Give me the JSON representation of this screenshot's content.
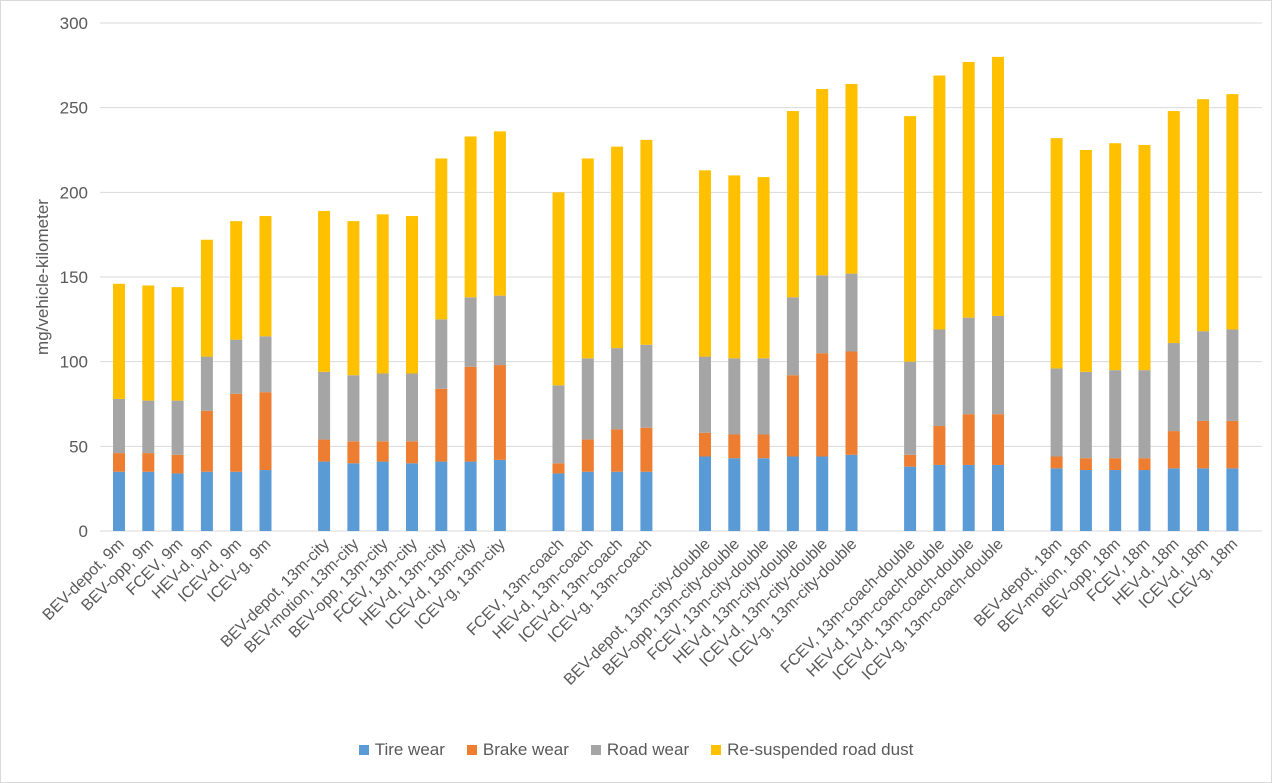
{
  "chart_data": {
    "type": "bar",
    "stacked": true,
    "title": "",
    "xlabel": "",
    "ylabel": "mg/vehicle-kilometer",
    "ylim": [
      0,
      300
    ],
    "yticks": [
      0,
      50,
      100,
      150,
      200,
      250,
      300
    ],
    "grid": true,
    "legend_position": "bottom",
    "colors": [
      "#5b9bd5",
      "#ed7d31",
      "#a5a5a5",
      "#ffc000"
    ],
    "groups": [
      {
        "categories": [
          "BEV-depot, 9m",
          "BEV-opp, 9m",
          "FCEV, 9m",
          "HEV-d, 9m",
          "ICEV-d, 9m",
          "ICEV-g, 9m"
        ],
        "series_values": [
          [
            35,
            35,
            34,
            35,
            35,
            36
          ],
          [
            11,
            11,
            11,
            36,
            46,
            46
          ],
          [
            32,
            31,
            32,
            32,
            32,
            33
          ],
          [
            68,
            68,
            67,
            69,
            70,
            71
          ]
        ]
      },
      {
        "categories": [
          "BEV-depot, 13m-city",
          "BEV-motion, 13m-city",
          "BEV-opp, 13m-city",
          "FCEV, 13m-city",
          "HEV-d, 13m-city",
          "ICEV-d, 13m-city",
          "ICEV-g, 13m-city"
        ],
        "series_values": [
          [
            41,
            40,
            41,
            40,
            41,
            41,
            42
          ],
          [
            13,
            13,
            12,
            13,
            43,
            56,
            56
          ],
          [
            40,
            39,
            40,
            40,
            41,
            41,
            41
          ],
          [
            95,
            91,
            94,
            93,
            95,
            95,
            97
          ]
        ]
      },
      {
        "categories": [
          "FCEV, 13m-coach",
          "HEV-d, 13m-coach",
          "ICEV-d, 13m-coach",
          "ICEV-g, 13m-coach"
        ],
        "series_values": [
          [
            34,
            35,
            35,
            35
          ],
          [
            6,
            19,
            25,
            26
          ],
          [
            46,
            48,
            48,
            49
          ],
          [
            114,
            118,
            119,
            121
          ]
        ]
      },
      {
        "categories": [
          "BEV-depot, 13m-city-double",
          "BEV-opp, 13m-city-double",
          "FCEV, 13m-city-double",
          "HEV-d, 13m-city-double",
          "ICEV-d, 13m-city-double",
          "ICEV-g, 13m-city-double"
        ],
        "series_values": [
          [
            44,
            43,
            43,
            44,
            44,
            45
          ],
          [
            14,
            14,
            14,
            48,
            61,
            61
          ],
          [
            45,
            45,
            45,
            46,
            46,
            46
          ],
          [
            110,
            108,
            107,
            110,
            110,
            112
          ]
        ]
      },
      {
        "categories": [
          "FCEV, 13m-coach-double",
          "HEV-d, 13m-coach-double",
          "ICEV-d, 13m-coach-double",
          "ICEV-g, 13m-coach-double"
        ],
        "series_values": [
          [
            38,
            39,
            39,
            39
          ],
          [
            7,
            23,
            30,
            30
          ],
          [
            55,
            57,
            57,
            58
          ],
          [
            145,
            150,
            151,
            153
          ]
        ]
      },
      {
        "categories": [
          "BEV-depot, 18m",
          "BEV-motion, 18m",
          "BEV-opp, 18m",
          "FCEV, 18m",
          "HEV-d, 18m",
          "ICEV-d, 18m",
          "ICEV-g, 18m"
        ],
        "series_values": [
          [
            37,
            36,
            36,
            36,
            37,
            37,
            37
          ],
          [
            7,
            7,
            7,
            7,
            22,
            28,
            28
          ],
          [
            52,
            51,
            52,
            52,
            52,
            53,
            54
          ],
          [
            136,
            131,
            134,
            133,
            137,
            137,
            139
          ]
        ]
      }
    ],
    "series": [
      {
        "name": "Tire wear"
      },
      {
        "name": "Brake wear"
      },
      {
        "name": "Road wear"
      },
      {
        "name": "Re-suspended road dust"
      }
    ]
  }
}
